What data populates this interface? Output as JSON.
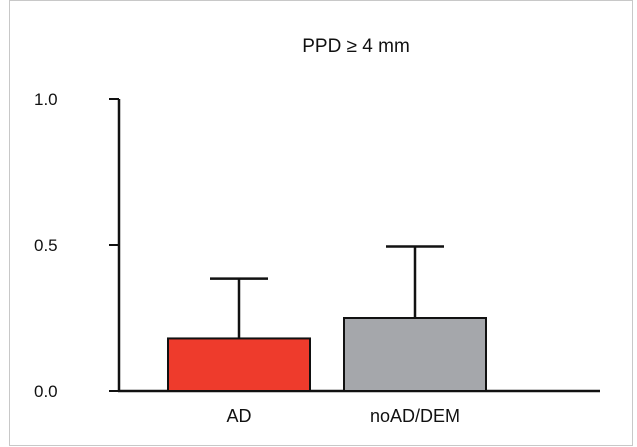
{
  "chart_data": {
    "type": "bar",
    "title": "PPD ≥ 4 mm",
    "xlabel": "",
    "ylabel": "",
    "categories": [
      "AD",
      "noAD/DEM"
    ],
    "values": [
      0.18,
      0.25
    ],
    "errors": [
      0.205,
      0.245
    ],
    "ylim": [
      0,
      1.0
    ],
    "yticks": [
      0.0,
      0.5,
      1.0
    ],
    "ytick_labels": [
      "0.0",
      "0.5",
      "1.0"
    ],
    "grid": false,
    "colors": [
      "#ee3b2c",
      "#a5a7ab"
    ]
  }
}
